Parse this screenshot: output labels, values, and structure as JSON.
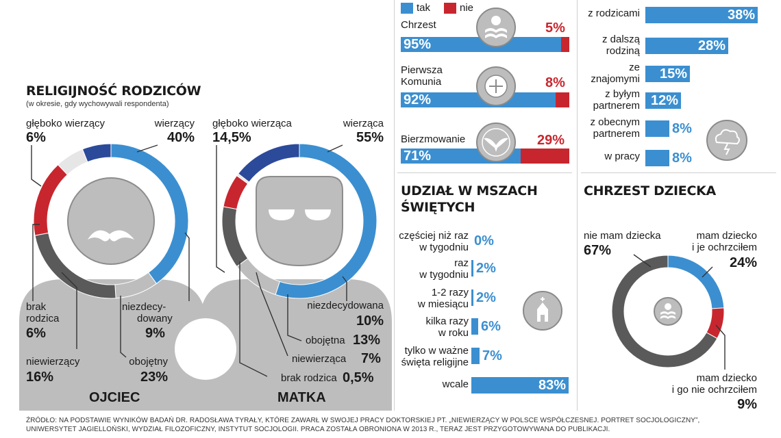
{
  "colors": {
    "blue": "#3b8fd0",
    "red": "#c8262e",
    "darkblue": "#2c4a9a",
    "grey": "#5a5a5a",
    "lightgrey": "#bdbdbd",
    "offwhite": "#e6e6e6"
  },
  "left": {
    "title": "RELIGIJNOŚĆ RODZICÓW",
    "subtitle": "(w okresie, gdy wychowywali respondenta)",
    "father_caption": "OJCIEC",
    "mother_caption": "MATKA"
  },
  "chart_data": [
    {
      "type": "pie",
      "title": "OJCIEC",
      "labels": [
        "wierzący",
        "niezdecydowany",
        "obojętny",
        "niewierzący",
        "brak rodzica",
        "głęboko wierzący"
      ],
      "values": [
        40,
        9,
        23,
        16,
        6,
        6
      ],
      "display": {
        "wierzący": {
          "label": "wierzący",
          "value": "40%"
        },
        "niezdecydowany": {
          "label1": "niezdecy-",
          "label2": "dowany",
          "value": "9%"
        },
        "obojętny": {
          "label": "obojętny",
          "value": "23%"
        },
        "niewierzący": {
          "label": "niewierzący",
          "value": "16%"
        },
        "brak_rodzica": {
          "label1": "brak",
          "label2": "rodzica",
          "value": "6%"
        },
        "gleboko": {
          "label": "głęboko wierzący",
          "value": "6%"
        }
      }
    },
    {
      "type": "pie",
      "title": "MATKA",
      "labels": [
        "wierząca",
        "niezdecydowana",
        "obojętna",
        "niewierząca",
        "brak rodzica",
        "głęboko wierząca"
      ],
      "values": [
        55,
        10,
        13,
        7,
        0.5,
        14.5
      ],
      "display": {
        "wierzaca": {
          "label": "wierząca",
          "value": "55%"
        },
        "niezdecydowana": {
          "label": "niezdecydowana",
          "value": "10%"
        },
        "obojetna": {
          "label": "obojętna",
          "value": "13%"
        },
        "niewierzaca": {
          "label": "niewierząca",
          "value": "7%"
        },
        "brak_rodzica": {
          "label": "brak rodzica",
          "value": "0,5%"
        },
        "gleboko": {
          "label": "głęboko wierząca",
          "value": "14,5%"
        }
      }
    },
    {
      "type": "bar",
      "legend": [
        "tak",
        "nie"
      ],
      "categories": [
        "Chrzest",
        "Pierwsza Komunia",
        "Bierzmowanie"
      ],
      "series": [
        {
          "name": "tak",
          "values": [
            95,
            92,
            71
          ]
        },
        {
          "name": "nie",
          "values": [
            5,
            8,
            29
          ]
        }
      ],
      "display": [
        {
          "label1": "Chrzest",
          "label2": "",
          "tak": "95%",
          "nie": "5%"
        },
        {
          "label1": "Pierwsza",
          "label2": "Komunia",
          "tak": "92%",
          "nie": "8%"
        },
        {
          "label1": "Bierzmowanie",
          "label2": "",
          "tak": "71%",
          "nie": "29%"
        }
      ]
    },
    {
      "type": "bar",
      "title": "UDZIAŁ W MSZACH ŚWIĘTYCH",
      "categories": [
        "częściej niż raz w tygodniu",
        "raz w tygodniu",
        "1-2 razy w miesiącu",
        "kilka razy w roku",
        "tylko w ważne święta religijne",
        "wcale"
      ],
      "values": [
        0,
        2,
        2,
        6,
        7,
        83
      ],
      "display": [
        {
          "l1": "częściej niż raz",
          "l2": "w tygodniu",
          "v": "0%"
        },
        {
          "l1": "raz",
          "l2": "w tygodniu",
          "v": "2%"
        },
        {
          "l1": "1-2 razy",
          "l2": "w miesiącu",
          "v": "2%"
        },
        {
          "l1": "kilka razy",
          "l2": "w roku",
          "v": "6%"
        },
        {
          "l1": "tylko w ważne",
          "l2": "święta religijne",
          "v": "7%"
        },
        {
          "l1": "wcale",
          "l2": "",
          "v": "83%"
        }
      ]
    },
    {
      "type": "bar",
      "categories": [
        "z rodzicami",
        "z dalszą rodziną",
        "ze znajomymi",
        "z byłym partnerem",
        "z obecnym partnerem",
        "w pracy"
      ],
      "values": [
        38,
        28,
        15,
        12,
        8,
        8
      ],
      "display": [
        {
          "l1": "z rodzicami",
          "l2": "",
          "v": "38%"
        },
        {
          "l1": "z dalszą",
          "l2": "rodziną",
          "v": "28%"
        },
        {
          "l1": "ze",
          "l2": "znajomymi",
          "v": "15%"
        },
        {
          "l1": "z byłym",
          "l2": "partnerem",
          "v": "12%"
        },
        {
          "l1": "z obecnym",
          "l2": "partnerem",
          "v": "8%"
        },
        {
          "l1": "w pracy",
          "l2": "",
          "v": "8%"
        }
      ]
    },
    {
      "type": "pie",
      "title": "CHRZEST DZIECKA",
      "labels": [
        "nie mam dziecka",
        "mam dziecko i je ochrzciłem",
        "mam dziecko i go nie ochrzciłem"
      ],
      "values": [
        67,
        24,
        9
      ],
      "display": {
        "nie_mam": {
          "label": "nie mam dziecka",
          "value": "67%"
        },
        "ochrzcil1": "mam dziecko",
        "ochrzcil2": "i je ochrzciłem",
        "ochrzcil_v": "24%",
        "nie_ochrzcil1": "mam dziecko",
        "nie_ochrzcil2": "i go nie ochrzciłem",
        "nie_ochrzcil_v": "9%"
      }
    }
  ],
  "footer": {
    "line1": "ŹRÓDŁO: NA PODSTAWIE WYNIKÓW BADAŃ DR. RADOSŁAWA TYRAŁY, KTÓRE ZAWARŁ W SWOJEJ PRACY DOKTORSKIEJ PT. „NIEWIERZĄCY W POLSCE WSPÓŁCZESNEJ. PORTRET SOCJOLOGICZNY”,",
    "line2": "UNIWERSYTET JAGIELLOŃSKI, WYDZIAŁ FILOZOFICZNY, INSTYTUT SOCJOLOGII. PRACA ZOSTAŁA OBRONIONA W 2013 R., TERAZ JEST PRZYGOTOWYWANA DO PUBLIKACJI."
  }
}
